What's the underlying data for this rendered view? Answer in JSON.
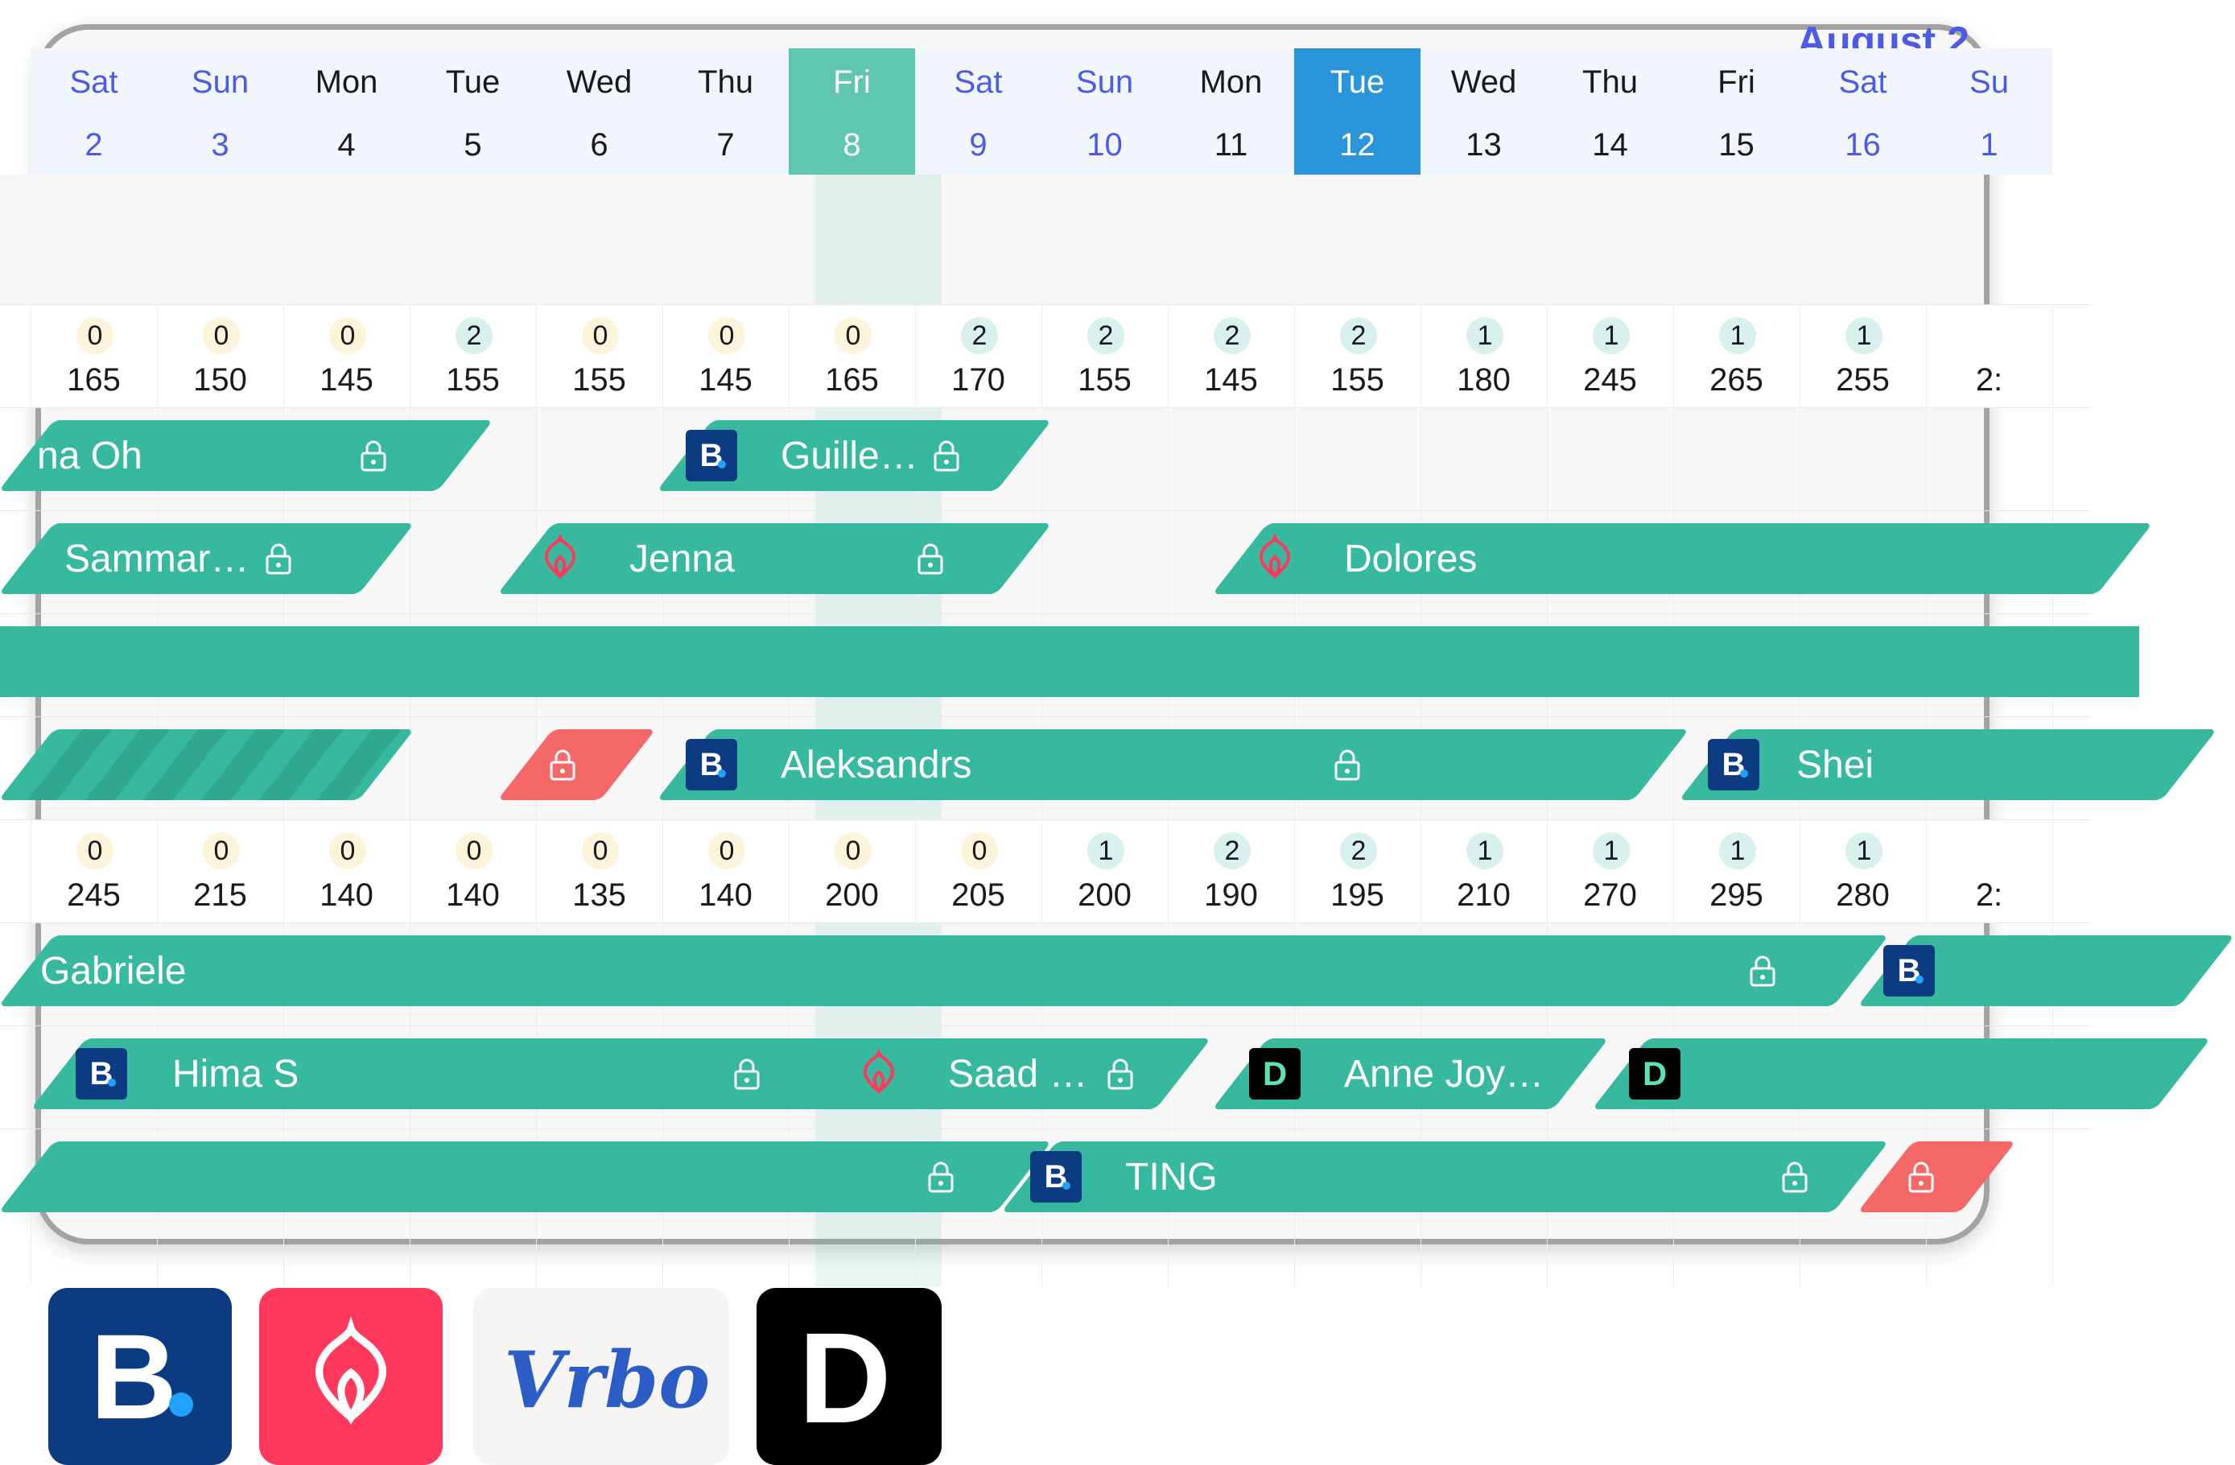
{
  "header": {
    "month_label": "August 2",
    "days": [
      {
        "dow": "Sat",
        "num": "2",
        "weekend": true
      },
      {
        "dow": "Sun",
        "num": "3",
        "weekend": true
      },
      {
        "dow": "Mon",
        "num": "4"
      },
      {
        "dow": "Tue",
        "num": "5"
      },
      {
        "dow": "Wed",
        "num": "6"
      },
      {
        "dow": "Thu",
        "num": "7"
      },
      {
        "dow": "Fri",
        "num": "8",
        "today": true
      },
      {
        "dow": "Sat",
        "num": "9",
        "weekend": true
      },
      {
        "dow": "Sun",
        "num": "10",
        "weekend": true
      },
      {
        "dow": "Mon",
        "num": "11"
      },
      {
        "dow": "Tue",
        "num": "12",
        "selected": true
      },
      {
        "dow": "Wed",
        "num": "13"
      },
      {
        "dow": "Thu",
        "num": "14"
      },
      {
        "dow": "Fri",
        "num": "15"
      },
      {
        "dow": "Sat",
        "num": "16",
        "weekend": true
      },
      {
        "dow": "Su",
        "num": "1",
        "weekend": true
      }
    ]
  },
  "listing1": {
    "availability": [
      "0",
      "0",
      "0",
      "2",
      "0",
      "0",
      "0",
      "2",
      "2",
      "2",
      "2",
      "1",
      "1",
      "1",
      "1"
    ],
    "prices": [
      "165",
      "150",
      "145",
      "155",
      "155",
      "145",
      "165",
      "170",
      "155",
      "145",
      "155",
      "180",
      "245",
      "265",
      "255",
      "2:"
    ]
  },
  "listing2": {
    "availability": [
      "0",
      "0",
      "0",
      "0",
      "0",
      "0",
      "0",
      "0",
      "1",
      "2",
      "2",
      "1",
      "1",
      "1",
      "1"
    ],
    "prices": [
      "245",
      "215",
      "140",
      "140",
      "135",
      "140",
      "200",
      "205",
      "200",
      "190",
      "195",
      "210",
      "270",
      "295",
      "280",
      "2:"
    ]
  },
  "bookings": {
    "na_oh": "na Oh",
    "guille": "Guille…",
    "sammar": "Sammar…",
    "jenna": "Jenna",
    "dolores": "Dolores",
    "aleksandrs": "Aleksandrs",
    "shei": "Shei",
    "gabriele": "Gabriele",
    "hima": "Hima S",
    "saad": "Saad …",
    "anne": "Anne Joy…",
    "ting": "TING"
  },
  "logos": {
    "booking_letter": "B",
    "vrbo_text": "Vrbo",
    "direct_letter": "D"
  },
  "colors": {
    "booking_bar": "#36b99e",
    "blocked_bar": "#f66868",
    "today_column": "#5fc7ae",
    "selected_day": "#2a95d9",
    "weekend_text": "#4b5be6",
    "booking_com": "#0c3b82",
    "airbnb": "#ff385c"
  }
}
